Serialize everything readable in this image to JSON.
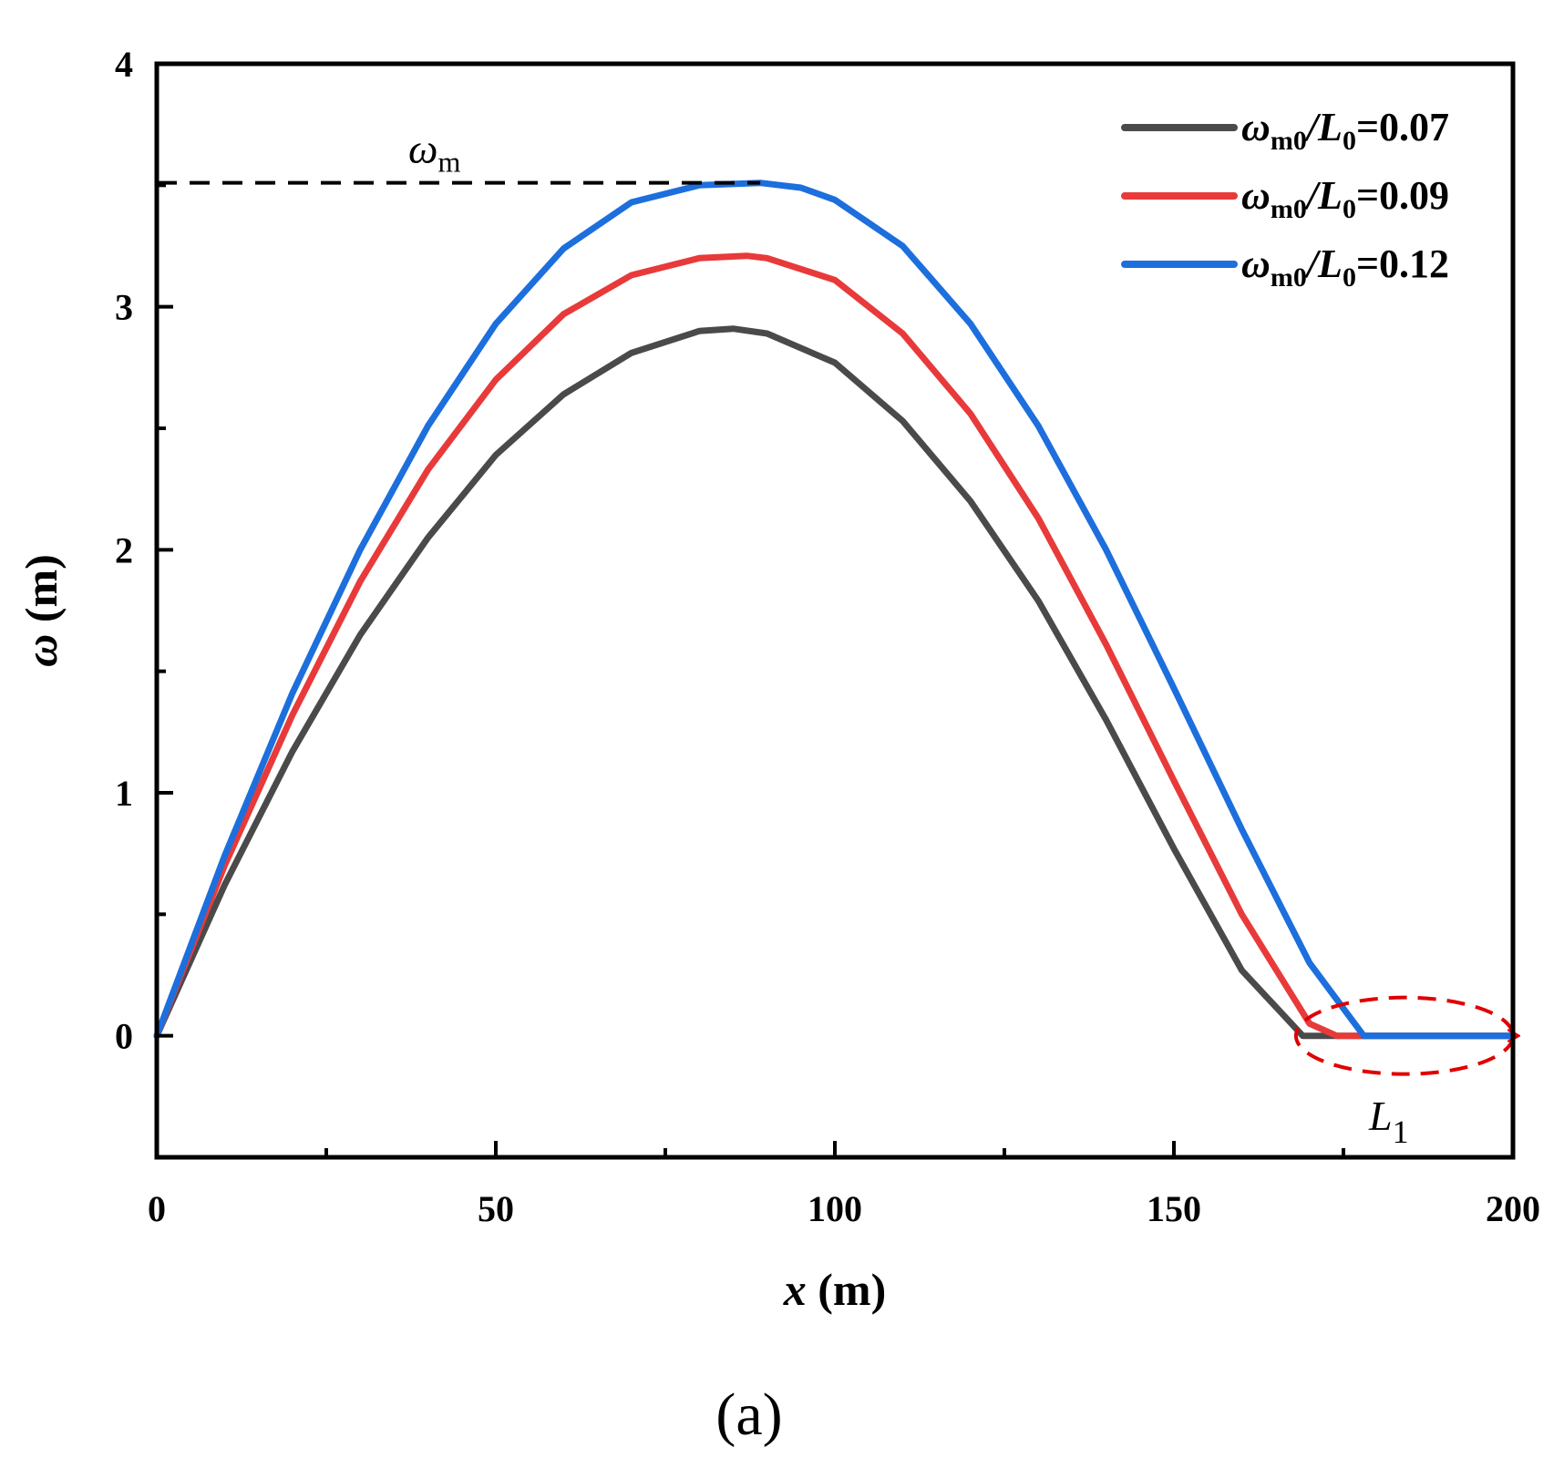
{
  "chart_data": {
    "type": "line",
    "xlabel_var": "x",
    "xlabel_unit": "(m)",
    "ylabel_var": "ω",
    "ylabel_unit": "(m)",
    "xlim": [
      0,
      200
    ],
    "ylim": [
      -0.5,
      4
    ],
    "xticks": [
      0,
      50,
      100,
      150,
      200
    ],
    "yticks": [
      0,
      1,
      2,
      3,
      4
    ],
    "x_minor_ticks": [
      25,
      75,
      125,
      175
    ],
    "y_minor_ticks": [
      -0.5,
      0.5,
      1.5,
      2.5,
      3.5
    ],
    "grid": false,
    "legend_position": "top-right",
    "series": [
      {
        "name": "ωm0/L0=0.07",
        "label_var": "ω",
        "label_sub1": "m0",
        "label_mid": "/L",
        "label_sub2": "0",
        "label_val": "=0.07",
        "color": "#4a4a4a",
        "x": [
          0,
          10,
          20,
          30,
          40,
          50,
          60,
          70,
          80,
          85,
          90,
          100,
          110,
          120,
          130,
          140,
          150,
          160,
          169,
          170,
          200
        ],
        "y": [
          0,
          0.62,
          1.17,
          1.65,
          2.05,
          2.39,
          2.64,
          2.81,
          2.9,
          2.91,
          2.89,
          2.77,
          2.53,
          2.2,
          1.79,
          1.3,
          0.77,
          0.27,
          0.0,
          0,
          0
        ]
      },
      {
        "name": "ωm0/L0=0.09",
        "label_var": "ω",
        "label_sub1": "m0",
        "label_mid": "/L",
        "label_sub2": "0",
        "label_val": "=0.09",
        "color": "#e83a3a",
        "x": [
          0,
          10,
          20,
          30,
          40,
          50,
          60,
          70,
          80,
          87,
          90,
          100,
          110,
          120,
          130,
          140,
          150,
          160,
          170,
          174,
          200
        ],
        "y": [
          0,
          0.7,
          1.32,
          1.87,
          2.33,
          2.7,
          2.97,
          3.13,
          3.2,
          3.21,
          3.2,
          3.11,
          2.89,
          2.56,
          2.13,
          1.61,
          1.05,
          0.5,
          0.05,
          0,
          0
        ]
      },
      {
        "name": "ωm0/L0=0.12",
        "label_var": "ω",
        "label_sub1": "m0",
        "label_mid": "/L",
        "label_sub2": "0",
        "label_val": "=0.12",
        "color": "#1c6fdc",
        "x": [
          0,
          10,
          20,
          30,
          40,
          50,
          60,
          70,
          80,
          89,
          95,
          100,
          110,
          120,
          130,
          140,
          150,
          160,
          170,
          178,
          200
        ],
        "y": [
          0,
          0.74,
          1.41,
          2.0,
          2.51,
          2.93,
          3.24,
          3.43,
          3.5,
          3.51,
          3.49,
          3.44,
          3.25,
          2.93,
          2.51,
          2.0,
          1.43,
          0.85,
          0.3,
          0,
          0
        ]
      }
    ],
    "annotations": {
      "omega_m_text": "ω",
      "omega_m_sub": "m",
      "omega_m_line": {
        "y": 3.51,
        "x_from": 0,
        "x_to": 89
      },
      "L1_text": "L",
      "L1_sub": "1",
      "L1_ellipse": {
        "x_center": 185,
        "y_center": 0,
        "x_span": [
          168,
          200
        ]
      }
    },
    "caption": "(a)"
  }
}
